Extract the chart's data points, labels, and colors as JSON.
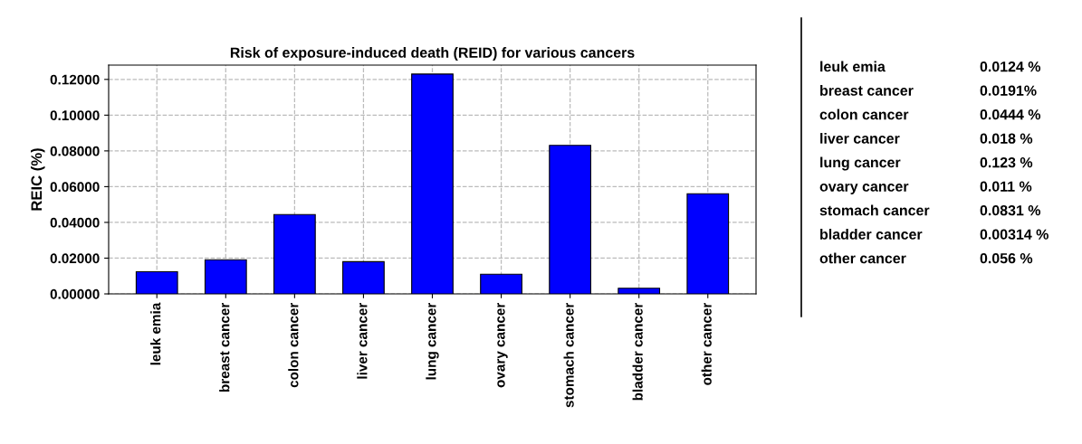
{
  "chart_data": {
    "type": "bar",
    "title": "Risk of exposure-induced death (REID) for various cancers",
    "ylabel": "REIC (%)",
    "categories": [
      "leuk emia",
      "breast cancer",
      "colon cancer",
      "liver cancer",
      "lung cancer",
      "ovary cancer",
      "stomach cancer",
      "bladder cancer",
      "other cancer"
    ],
    "values": [
      0.0124,
      0.0191,
      0.0444,
      0.018,
      0.123,
      0.011,
      0.0831,
      0.00314,
      0.056
    ],
    "annotations": [
      "leuk emia",
      "0.0124 %",
      "breast cancer",
      "0.0191%",
      "colon cancer",
      "0.0444 %",
      "liver cancer",
      "0.018 %",
      "lung cancer",
      "0.123 %",
      "ovary cancer",
      "0.011 %",
      "stomach cancer",
      "0.0831 %",
      "bladder cancer",
      "0.00314 %",
      "other cancer",
      "0.056 %"
    ],
    "color": "#0000ff",
    "ylim": [
      0,
      0.128
    ],
    "yticks": [
      {
        "value": 0,
        "label": "0.00000"
      },
      {
        "value": 0.02,
        "label": "0.02000"
      },
      {
        "value": 0.04,
        "label": "0.04000"
      },
      {
        "value": 0.06,
        "label": "0.06000"
      },
      {
        "value": 0.08,
        "label": "0.08000"
      },
      {
        "value": 0.1,
        "label": "0.10000"
      },
      {
        "value": 0.12,
        "label": "0.12000"
      }
    ],
    "grid": true,
    "line_style": "dashed"
  }
}
